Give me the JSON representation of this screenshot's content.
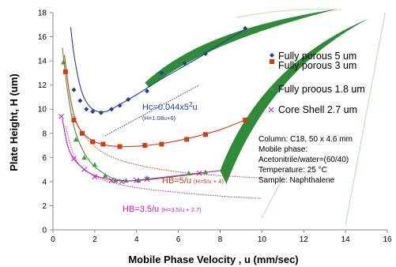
{
  "chart_data": {
    "type": "scatter",
    "title": "",
    "xlabel": "Mobile  Phase Velocity , u (mm/sec)",
    "ylabel": "Plate Height, H (um)",
    "xlim": [
      0,
      16
    ],
    "ylim": [
      0,
      18
    ],
    "x_ticks": [
      "0",
      "2",
      "4",
      "6",
      "8",
      "10",
      "12",
      "14",
      "16"
    ],
    "y_ticks": [
      "0",
      "2",
      "4",
      "6",
      "8",
      "10",
      "12",
      "14",
      "16",
      "18"
    ],
    "grid": false,
    "legend_position": "right",
    "series": [
      {
        "name": "Fully porous 5 um",
        "marker": "diamond",
        "color": "#1f3f99",
        "points": [
          [
            1.0,
            11.6
          ],
          [
            1.3,
            10.7
          ],
          [
            1.6,
            10.0
          ],
          [
            1.9,
            9.8
          ],
          [
            2.3,
            9.7
          ],
          [
            2.8,
            10.0
          ],
          [
            3.2,
            10.3
          ],
          [
            3.6,
            10.8
          ],
          [
            4.5,
            11.5
          ],
          [
            5.2,
            13.0
          ],
          [
            6.3,
            13.8
          ],
          [
            7.3,
            14.6
          ],
          [
            9.2,
            16.7
          ]
        ],
        "fit_curve": [
          [
            0.85,
            16.8
          ],
          [
            1.0,
            14.6
          ],
          [
            1.3,
            11.9
          ],
          [
            1.6,
            10.6
          ],
          [
            2.0,
            9.9
          ],
          [
            2.5,
            9.8
          ],
          [
            3.0,
            10.2
          ],
          [
            4.0,
            11.2
          ],
          [
            5.0,
            12.3
          ],
          [
            6.0,
            13.3
          ],
          [
            7.0,
            14.3
          ],
          [
            8.0,
            15.4
          ],
          [
            9.2,
            16.6
          ]
        ],
        "model_curve": [
          [
            2.5,
            7.8
          ],
          [
            4.0,
            9.2
          ],
          [
            5.5,
            10.6
          ],
          [
            7.0,
            12.0
          ]
        ]
      },
      {
        "name": "Fully porous 3 um",
        "marker": "square",
        "color": "#d63a12",
        "points": [
          [
            0.6,
            13.1
          ],
          [
            1.0,
            9.1
          ],
          [
            1.4,
            8.0
          ],
          [
            1.9,
            7.3
          ],
          [
            2.4,
            7.1
          ],
          [
            3.2,
            6.9
          ],
          [
            4.4,
            7.0
          ],
          [
            5.2,
            7.1
          ],
          [
            6.4,
            7.5
          ],
          [
            7.3,
            7.9
          ],
          [
            9.2,
            9.1
          ]
        ],
        "fit_curve": [
          [
            0.55,
            14.5
          ],
          [
            0.8,
            11.2
          ],
          [
            1.1,
            9.0
          ],
          [
            1.5,
            7.9
          ],
          [
            2.0,
            7.3
          ],
          [
            2.6,
            7.0
          ],
          [
            3.3,
            6.9
          ],
          [
            4.2,
            6.95
          ],
          [
            5.0,
            7.1
          ],
          [
            6.0,
            7.4
          ],
          [
            7.0,
            7.8
          ],
          [
            8.0,
            8.3
          ],
          [
            9.2,
            9.1
          ]
        ],
        "model_curve": [
          [
            0.9,
            9.6
          ],
          [
            1.5,
            7.8
          ],
          [
            2.5,
            6.3
          ],
          [
            4.0,
            5.4
          ],
          [
            6.0,
            4.8
          ],
          [
            8.0,
            4.5
          ],
          [
            10.0,
            4.3
          ]
        ]
      },
      {
        "name": "Fully proous 1.8 um",
        "marker": "triangle",
        "color": "#3b9a3b",
        "points": [
          [
            0.5,
            13.9
          ],
          [
            1.1,
            7.5
          ],
          [
            1.5,
            6.0
          ],
          [
            2.0,
            5.4
          ],
          [
            2.5,
            4.5
          ],
          [
            3.0,
            4.1
          ],
          [
            3.5,
            4.1
          ],
          [
            4.1,
            4.1
          ],
          [
            4.5,
            4.3
          ],
          [
            6.5,
            4.7
          ],
          [
            7.3,
            4.8
          ]
        ],
        "fit_curve": [
          [
            0.45,
            15.1
          ],
          [
            0.7,
            11.5
          ],
          [
            1.0,
            8.6
          ],
          [
            1.4,
            6.7
          ],
          [
            1.9,
            5.4
          ],
          [
            2.5,
            4.6
          ],
          [
            3.0,
            4.2
          ],
          [
            3.6,
            4.05
          ],
          [
            4.5,
            4.15
          ],
          [
            5.5,
            4.35
          ],
          [
            6.5,
            4.55
          ],
          [
            7.3,
            4.75
          ]
        ]
      },
      {
        "name": "Core Shell 2.7 um",
        "marker": "x",
        "color": "#c817c8",
        "points": [
          [
            0.4,
            9.4
          ],
          [
            1.0,
            5.9
          ],
          [
            1.5,
            5.0
          ],
          [
            2.0,
            4.4
          ],
          [
            2.8,
            4.1
          ],
          [
            3.3,
            4.0
          ],
          [
            4.0,
            4.1
          ],
          [
            4.5,
            4.2
          ],
          [
            7.0,
            4.7
          ]
        ],
        "fit_curve": [
          [
            0.45,
            9.2
          ],
          [
            0.7,
            7.0
          ],
          [
            1.0,
            5.9
          ],
          [
            1.5,
            5.0
          ],
          [
            2.0,
            4.5
          ],
          [
            2.8,
            4.15
          ],
          [
            3.5,
            4.05
          ],
          [
            4.5,
            4.2
          ],
          [
            5.5,
            4.4
          ],
          [
            7.0,
            4.7
          ],
          [
            8.0,
            4.9
          ]
        ],
        "model_curve": [
          [
            0.6,
            8.6
          ],
          [
            1.0,
            6.2
          ],
          [
            1.5,
            5.0
          ],
          [
            2.5,
            4.1
          ],
          [
            4.0,
            3.5
          ],
          [
            6.0,
            3.1
          ],
          [
            8.0,
            2.8
          ],
          [
            10.0,
            2.6
          ]
        ]
      }
    ],
    "annotations": {
      "hc_formula": "Hc=0.044x5",
      "hc_exp": "2",
      "hc_tail": "u",
      "hc_sub": "(H=1.08u+6)",
      "hb5_formula": "HB=5/u",
      "hb5_sub": "(H=5/u + 4)",
      "hb35_formula": "HB=3.5/u",
      "hb35_sub": "(H=3.5/u + 2.7)"
    },
    "info_box": {
      "lines": [
        "Column: C18, 50 x 4.6 mm",
        "Mobile phase:",
        "Acetonitrile/water=(60/40)",
        "Temperature: 25 °C",
        "Sample: Naphthalene"
      ]
    },
    "colors": {
      "arrow_green": "#2e8b3a",
      "light_green_line": "#bfe3bf"
    }
  }
}
